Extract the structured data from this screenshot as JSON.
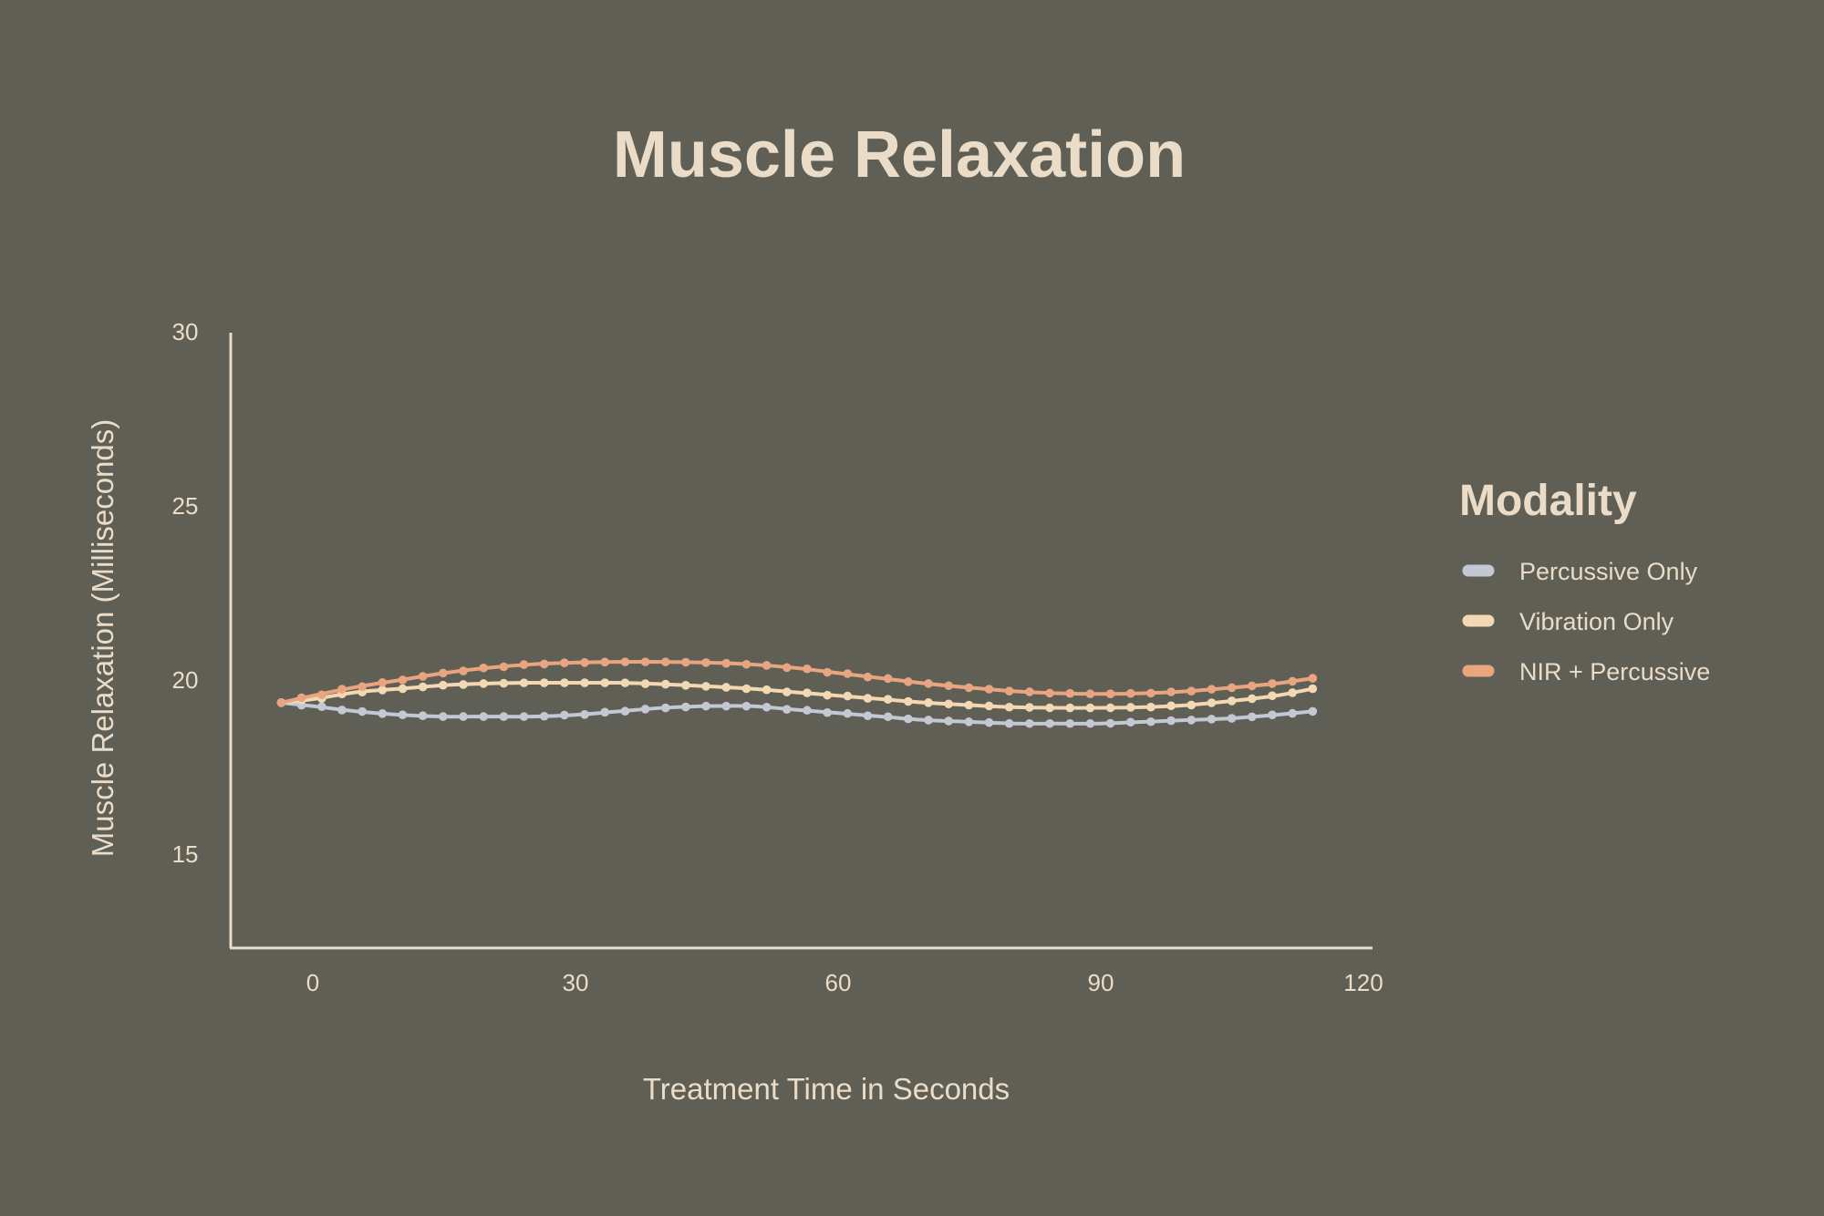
{
  "chart_data": {
    "type": "line",
    "title": "Muscle Relaxation",
    "xlabel": "Treatment Time in Seconds",
    "ylabel": "Muscle Relaxation (Milliseconds)",
    "xlim": [
      -10,
      120
    ],
    "ylim": [
      12.5,
      30
    ],
    "xticks": [
      0,
      30,
      60,
      90,
      120
    ],
    "xtick_labels": [
      "0",
      "30",
      "60",
      "90",
      "120"
    ],
    "yticks": [
      15,
      20,
      25,
      30
    ],
    "ytick_labels": [
      "15",
      "20",
      "25",
      "30"
    ],
    "legend_title": "Modality",
    "legend_position": "right",
    "x": [
      -3.6,
      0,
      5,
      10,
      15,
      20,
      25,
      30,
      35,
      40,
      45,
      50,
      55,
      60,
      65,
      70,
      75,
      80,
      85,
      90,
      95,
      100,
      105,
      110,
      114.2
    ],
    "series": [
      {
        "name": "Percussive Only",
        "color": "#c3c9d3",
        "values": [
          19.35,
          19.25,
          19.1,
          19.0,
          18.95,
          18.95,
          18.95,
          19.0,
          19.1,
          19.2,
          19.25,
          19.25,
          19.15,
          19.05,
          18.95,
          18.85,
          18.8,
          18.75,
          18.75,
          18.75,
          18.8,
          18.85,
          18.9,
          19.0,
          19.1
        ]
      },
      {
        "name": "Vibration Only",
        "color": "#f3d9b3",
        "values": [
          19.35,
          19.45,
          19.65,
          19.75,
          19.85,
          19.9,
          19.92,
          19.92,
          19.92,
          19.88,
          19.82,
          19.75,
          19.65,
          19.55,
          19.45,
          19.35,
          19.28,
          19.22,
          19.2,
          19.2,
          19.22,
          19.28,
          19.4,
          19.55,
          19.75
        ]
      },
      {
        "name": "NIR + Percussive",
        "color": "#e9a57f",
        "values": [
          19.35,
          19.55,
          19.8,
          20.0,
          20.2,
          20.35,
          20.45,
          20.5,
          20.52,
          20.52,
          20.5,
          20.45,
          20.35,
          20.2,
          20.05,
          19.9,
          19.78,
          19.68,
          19.62,
          19.6,
          19.62,
          19.68,
          19.78,
          19.9,
          20.05
        ]
      }
    ]
  },
  "colors": {
    "background": "#5f5f56",
    "text": "#eadcc7",
    "axis": "#eadcc7"
  }
}
